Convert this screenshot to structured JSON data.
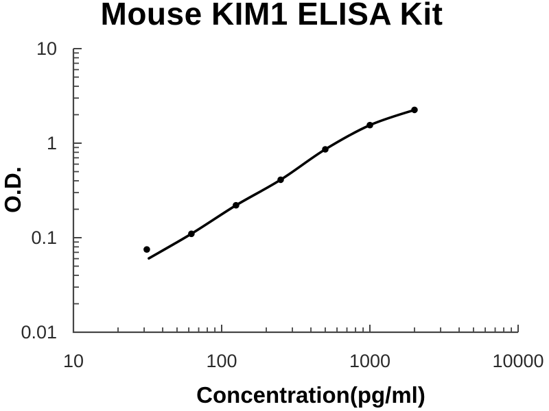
{
  "chart_data": {
    "type": "scatter",
    "title": "Mouse KIM1 ELISA Kit",
    "xlabel": "Concentration(pg/ml)",
    "ylabel": "O.D.",
    "x_scale": "log",
    "y_scale": "log",
    "xlim": [
      10,
      10000
    ],
    "ylim": [
      0.01,
      10
    ],
    "x_ticks": [
      10,
      100,
      1000,
      10000
    ],
    "x_tick_labels": [
      "10",
      "100",
      "1000",
      "10000"
    ],
    "y_ticks": [
      0.01,
      0.1,
      1,
      10
    ],
    "y_tick_labels": [
      "0.01",
      "0.1",
      "1",
      "10"
    ],
    "grid": false,
    "legend": false,
    "series": [
      {
        "name": "standard curve",
        "marker": "filled-circle",
        "line": "smooth-fit",
        "color": "#000000",
        "x": [
          31.25,
          62.5,
          125,
          250,
          500,
          1000,
          2000
        ],
        "y": [
          0.075,
          0.11,
          0.22,
          0.41,
          0.86,
          1.55,
          2.25
        ]
      }
    ],
    "colors": {
      "background": "#ffffff",
      "axis": "#444444",
      "text": "#000000",
      "tick_text": "#2b2b2b",
      "curve": "#000000"
    }
  }
}
